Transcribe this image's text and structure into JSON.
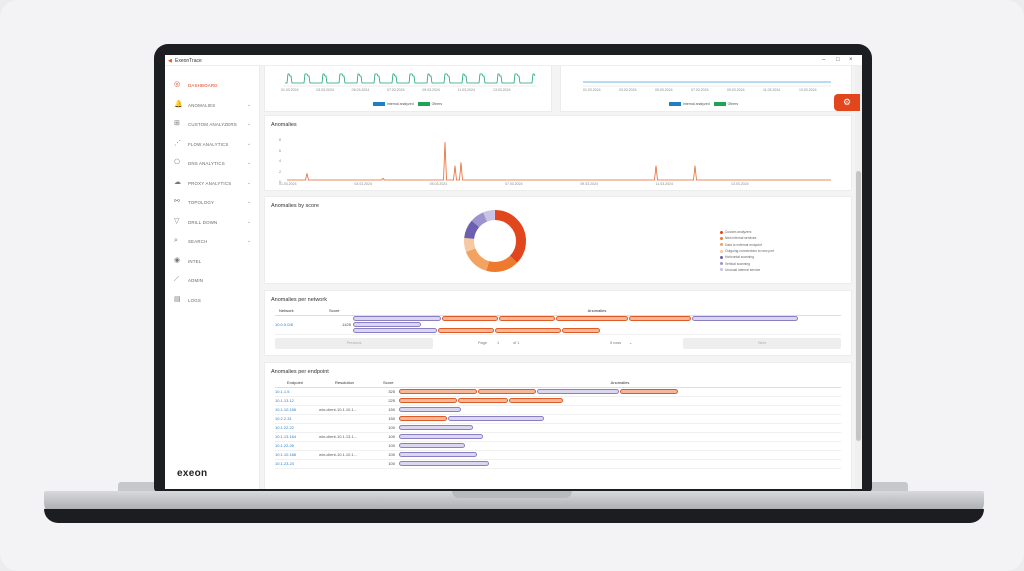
{
  "window": {
    "title": "ExeonTrace"
  },
  "sidebar": {
    "items": [
      {
        "label": "Dashboard",
        "icon": "dashboard-icon",
        "glyph": "◎",
        "active": true,
        "chevron": false
      },
      {
        "label": "Anomalies",
        "icon": "bell-icon",
        "glyph": "🔔",
        "active": false,
        "chevron": true
      },
      {
        "label": "Custom analyzers",
        "icon": "custom-icon",
        "glyph": "⊞",
        "active": false,
        "chevron": true
      },
      {
        "label": "Flow analytics",
        "icon": "flow-icon",
        "glyph": "⋰",
        "active": false,
        "chevron": true
      },
      {
        "label": "DNS analytics",
        "icon": "dns-icon",
        "glyph": "⎔",
        "active": false,
        "chevron": true
      },
      {
        "label": "Proxy analytics",
        "icon": "cloud-icon",
        "glyph": "☁",
        "active": false,
        "chevron": true
      },
      {
        "label": "Topology",
        "icon": "topology-icon",
        "glyph": "⚯",
        "active": false,
        "chevron": true
      },
      {
        "label": "Drill down",
        "icon": "filter-icon",
        "glyph": "▽",
        "active": false,
        "chevron": true
      },
      {
        "label": "Search",
        "icon": "search-icon",
        "glyph": "⌕",
        "active": false,
        "chevron": true
      },
      {
        "label": "Intel",
        "icon": "intel-icon",
        "glyph": "◉",
        "active": false,
        "chevron": false
      },
      {
        "label": "Admin",
        "icon": "admin-icon",
        "glyph": "⟋",
        "active": false,
        "chevron": false
      },
      {
        "label": "Logs",
        "icon": "logs-icon",
        "glyph": "▤",
        "active": false,
        "chevron": false
      }
    ],
    "brand": "exeon"
  },
  "colors": {
    "accent": "#e2461d",
    "blue": "#1f7fc1",
    "green": "#1fa35a",
    "line": "#e8682d"
  },
  "top_left_chart": {
    "ticks": [
      "01.03.2024",
      "03.03.2024",
      "05.03.2024",
      "07.03.2024",
      "09.03.2024",
      "11.03.2024",
      "13.03.2024"
    ],
    "legend": [
      "Internal analyzed",
      "Others"
    ]
  },
  "top_right_chart": {
    "ticks": [
      "01.03.2024",
      "03.03.2024",
      "05.03.2024",
      "07.03.2024",
      "09.03.2024",
      "11.03.2024",
      "13.03.2024"
    ],
    "legend": [
      "Internal analyzed",
      "Others"
    ]
  },
  "anomalies_chart": {
    "title": "Anomalies",
    "y_ticks": [
      "8",
      "6",
      "4",
      "2",
      "0"
    ],
    "x_ticks": [
      "01.03.2024",
      "03.03.2024",
      "05.03.2024",
      "07.03.2024",
      "09.03.2024",
      "11.03.2024",
      "13.03.2024"
    ]
  },
  "score_chart": {
    "title": "Anomalies by score",
    "legend": [
      {
        "label": "Custom analyzers",
        "color": "#e2461d"
      },
      {
        "label": "New internal services",
        "color": "#ee7a2e"
      },
      {
        "label": "Data to external endpoint",
        "color": "#f3a261"
      },
      {
        "label": "Outgoing connections to new port",
        "color": "#f7c9a3"
      },
      {
        "label": "Horizontal scanning",
        "color": "#6a5fb0"
      },
      {
        "label": "Vertical scanning",
        "color": "#9c93cf"
      },
      {
        "label": "Unusual internal service",
        "color": "#c9c3e6"
      }
    ]
  },
  "network_table": {
    "title": "Anomalies per network",
    "headers": [
      "Network",
      "Score",
      "Anomalies"
    ],
    "rows": [
      {
        "network": "10.0.0.0/8",
        "score": "1425"
      }
    ],
    "pager": {
      "previous": "Previous",
      "page_label": "Page",
      "page": "1",
      "of_label": "of 1",
      "rows": "5 rows",
      "next": "Next"
    }
  },
  "endpoint_table": {
    "title": "Anomalies per endpoint",
    "headers": [
      "Endpoint",
      "Resolution",
      "Score",
      "Anomalies"
    ],
    "rows": [
      {
        "endpoint": "10.1.1.5",
        "resolution": "",
        "score": "325"
      },
      {
        "endpoint": "10.1.13.12",
        "resolution": "",
        "score": "225"
      },
      {
        "endpoint": "10.1.10.156",
        "resolution": "win-client-10.1.10.1...",
        "score": "150"
      },
      {
        "endpoint": "10.2.2.31",
        "resolution": "",
        "score": "150"
      },
      {
        "endpoint": "10.1.22.22",
        "resolution": "",
        "score": "100"
      },
      {
        "endpoint": "10.1.13.164",
        "resolution": "win-client-10.1.13.1...",
        "score": "100"
      },
      {
        "endpoint": "10.1.22.26",
        "resolution": "",
        "score": "100"
      },
      {
        "endpoint": "10.1.10.186",
        "resolution": "win-client-10.1.10.1...",
        "score": "100"
      },
      {
        "endpoint": "10.1.23.23",
        "resolution": "",
        "score": "100"
      }
    ]
  }
}
